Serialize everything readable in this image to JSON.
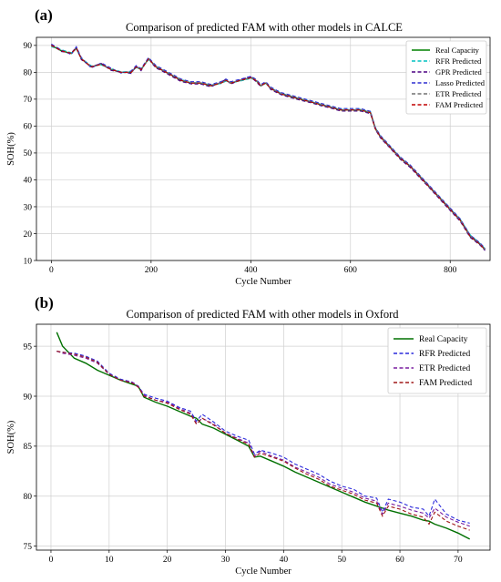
{
  "chart_data": [
    {
      "panel_label": "(a)",
      "type": "line",
      "title": "Comparison of predicted FAM  with other models in CALCE",
      "xlabel": "Cycle Number",
      "ylabel": "SOH(%)",
      "xlim": [
        -30,
        880
      ],
      "ylim": [
        10,
        93
      ],
      "xticks": [
        0,
        200,
        400,
        600,
        800
      ],
      "yticks": [
        10,
        20,
        30,
        40,
        50,
        60,
        70,
        80,
        90
      ],
      "grid": true,
      "legend_position": "top-right",
      "x": [
        0,
        20,
        40,
        50,
        60,
        80,
        100,
        120,
        140,
        160,
        170,
        180,
        195,
        200,
        210,
        220,
        240,
        260,
        280,
        300,
        320,
        340,
        350,
        360,
        380,
        400,
        410,
        420,
        430,
        440,
        460,
        480,
        500,
        520,
        540,
        560,
        580,
        600,
        620,
        640,
        650,
        660,
        680,
        700,
        720,
        740,
        760,
        780,
        800,
        820,
        840,
        860,
        870
      ],
      "series": [
        {
          "name": "Real Capacity",
          "color": "#008000",
          "dash": "solid",
          "values": [
            90,
            88,
            87,
            89,
            85,
            82,
            83,
            81,
            80,
            80,
            82,
            81,
            85,
            84,
            82,
            81,
            79,
            77,
            76,
            76,
            75,
            76,
            77,
            76,
            77,
            78,
            77,
            75,
            76,
            74,
            72,
            71,
            70,
            69,
            68,
            67,
            66,
            66,
            66,
            65,
            59,
            56,
            52,
            48,
            45,
            41,
            37,
            33,
            29,
            25,
            19,
            16,
            14
          ]
        },
        {
          "name": "RFR Predicted",
          "color": "#00c0c0",
          "dash": "dashed",
          "values": [
            89.5,
            88.4,
            87.3,
            88.6,
            85.2,
            82.4,
            82.7,
            81.3,
            80.2,
            80.3,
            81.7,
            81.2,
            84.6,
            84.1,
            82.3,
            81.2,
            79.2,
            77.3,
            76.2,
            76.1,
            75.3,
            75.8,
            76.7,
            76.2,
            76.8,
            77.7,
            77.1,
            75.3,
            75.8,
            74.2,
            72.3,
            71.2,
            70.2,
            69.2,
            68.2,
            67.2,
            66.2,
            66.1,
            66.2,
            65.3,
            59.4,
            56.3,
            52.3,
            48.3,
            45.2,
            41.3,
            37.3,
            33.3,
            29.3,
            25.4,
            19.6,
            16.3,
            14.4
          ]
        },
        {
          "name": "GPR Predicted",
          "color": "#4b0082",
          "dash": "dashed",
          "values": [
            90.3,
            87.7,
            87.2,
            89.3,
            84.7,
            82.1,
            83.3,
            80.7,
            80.1,
            79.6,
            82.3,
            80.6,
            85.4,
            83.7,
            81.6,
            80.7,
            78.6,
            76.6,
            75.7,
            75.6,
            74.6,
            76.3,
            77.4,
            75.6,
            77.3,
            78.3,
            76.6,
            74.7,
            76.3,
            73.6,
            71.7,
            70.6,
            69.6,
            68.7,
            67.6,
            66.7,
            65.6,
            65.6,
            65.6,
            64.6,
            58.7,
            55.6,
            51.7,
            47.6,
            44.6,
            40.6,
            36.7,
            32.6,
            28.6,
            24.6,
            18.6,
            15.7,
            13.7
          ]
        },
        {
          "name": "Lasso Predicted",
          "color": "#2f2fd0",
          "dash": "dashed",
          "values": [
            90.5,
            88.3,
            86.6,
            89.5,
            85.5,
            81.6,
            83.5,
            81.5,
            79.7,
            80.5,
            82.5,
            81.4,
            85.5,
            84.4,
            82.5,
            81.5,
            79.5,
            77.5,
            76.5,
            76.5,
            75.5,
            76.5,
            77.5,
            76.5,
            77.5,
            78.5,
            77.5,
            75.5,
            76.5,
            74.5,
            72.5,
            71.5,
            70.5,
            69.5,
            68.5,
            67.5,
            66.5,
            66.5,
            66.5,
            65.5,
            59.5,
            56.5,
            52.5,
            48.5,
            45.5,
            41.5,
            37.5,
            33.5,
            29.5,
            25.5,
            19.5,
            16.5,
            14.5
          ]
        },
        {
          "name": "ETR Predicted",
          "color": "#707070",
          "dash": "dashed",
          "values": [
            89.8,
            88.1,
            87.1,
            88.9,
            85.1,
            82.1,
            83.1,
            81.1,
            80.1,
            80.1,
            81.9,
            81.1,
            84.9,
            84.0,
            82.1,
            81.1,
            79.1,
            77.1,
            76.1,
            76.1,
            75.1,
            76.1,
            76.9,
            76.1,
            77.1,
            77.9,
            77.1,
            75.1,
            76.1,
            74.1,
            72.1,
            71.1,
            70.1,
            69.1,
            68.1,
            67.1,
            66.1,
            66.1,
            66.1,
            65.1,
            59.1,
            56.1,
            52.1,
            48.1,
            45.1,
            41.1,
            37.1,
            33.1,
            29.1,
            25.1,
            19.1,
            16.1,
            14.1
          ]
        },
        {
          "name": "FAM Predicted",
          "color": "#c00000",
          "dash": "dashed",
          "values": [
            90.1,
            88.0,
            87.0,
            89.0,
            85.0,
            82.0,
            83.0,
            81.0,
            80.0,
            80.0,
            82.0,
            81.0,
            85.0,
            84.0,
            82.0,
            81.0,
            79.0,
            77.0,
            76.0,
            76.0,
            75.0,
            76.0,
            77.0,
            76.0,
            77.0,
            78.0,
            77.0,
            75.0,
            76.0,
            74.0,
            72.0,
            71.0,
            70.0,
            69.0,
            68.0,
            67.0,
            66.0,
            66.0,
            66.0,
            65.0,
            59.0,
            56.0,
            52.0,
            48.0,
            45.0,
            41.0,
            37.0,
            33.0,
            29.0,
            25.0,
            19.0,
            16.0,
            14.0
          ]
        }
      ]
    },
    {
      "panel_label": "(b)",
      "type": "line",
      "title": "Comparison of predicted FAM  with other models in Oxford",
      "xlabel": "Cycle Number",
      "ylabel": "SOH(%)",
      "xlim": [
        -2.5,
        75.5
      ],
      "ylim": [
        74.6,
        97.2
      ],
      "xticks": [
        0,
        10,
        20,
        30,
        40,
        50,
        60,
        70
      ],
      "yticks": [
        75,
        80,
        85,
        90,
        95
      ],
      "grid": true,
      "legend_position": "top-right",
      "x": [
        1,
        2,
        4,
        6,
        8,
        10,
        12,
        14,
        15,
        16,
        18,
        20,
        22,
        24,
        25,
        26,
        28,
        30,
        32,
        34,
        35,
        36,
        38,
        40,
        42,
        44,
        46,
        48,
        50,
        52,
        54,
        56,
        57,
        58,
        60,
        62,
        64,
        65,
        66,
        68,
        70,
        72
      ],
      "series": [
        {
          "name": "Real Capacity",
          "color": "#007000",
          "dash": "solid",
          "values": [
            96.4,
            95.0,
            93.8,
            93.3,
            92.6,
            92.1,
            91.6,
            91.2,
            91.0,
            89.9,
            89.4,
            89.0,
            88.5,
            88.0,
            87.8,
            87.2,
            86.8,
            86.2,
            85.6,
            85.0,
            83.9,
            84.0,
            83.5,
            83.0,
            82.4,
            81.9,
            81.4,
            80.9,
            80.4,
            79.9,
            79.4,
            79.0,
            78.8,
            78.6,
            78.3,
            78.0,
            77.6,
            77.5,
            77.2,
            76.8,
            76.3,
            75.7
          ]
        },
        {
          "name": "RFR Predicted",
          "color": "#2a2adc",
          "dash": "dashed",
          "values": [
            94.5,
            94.4,
            94.3,
            94.0,
            93.5,
            92.3,
            91.7,
            91.4,
            91.0,
            90.2,
            89.8,
            89.5,
            88.9,
            88.5,
            87.5,
            88.2,
            87.4,
            86.5,
            86.0,
            85.6,
            84.2,
            84.6,
            84.3,
            83.9,
            83.2,
            82.7,
            82.2,
            81.5,
            81.0,
            80.7,
            80.0,
            79.8,
            78.4,
            79.7,
            79.4,
            78.9,
            78.7,
            78.0,
            79.7,
            78.2,
            77.6,
            77.3
          ]
        },
        {
          "name": "ETR Predicted",
          "color": "#7a1fa0",
          "dash": "dashed",
          "values": [
            94.5,
            94.3,
            94.1,
            93.8,
            93.3,
            92.2,
            91.6,
            91.4,
            91.0,
            90.1,
            89.6,
            89.4,
            88.8,
            88.3,
            87.3,
            87.8,
            87.2,
            86.3,
            85.8,
            85.3,
            84.0,
            84.5,
            84.0,
            83.6,
            82.9,
            82.4,
            81.9,
            81.2,
            80.8,
            80.4,
            79.8,
            79.5,
            78.2,
            79.3,
            79.0,
            78.6,
            78.3,
            77.8,
            78.8,
            77.9,
            77.4,
            77.0
          ]
        },
        {
          "name": "FAM Predicted",
          "color": "#a01818",
          "dash": "dashed",
          "values": [
            94.5,
            94.4,
            94.2,
            93.9,
            93.4,
            92.2,
            91.6,
            91.3,
            90.9,
            90.0,
            89.6,
            89.3,
            88.7,
            88.2,
            87.2,
            87.8,
            87.1,
            86.3,
            85.7,
            85.2,
            83.9,
            84.3,
            83.9,
            83.5,
            82.8,
            82.2,
            81.7,
            81.0,
            80.6,
            80.2,
            79.6,
            79.3,
            78.0,
            79.0,
            78.7,
            78.2,
            77.9,
            77.2,
            78.4,
            77.5,
            77.0,
            76.6
          ]
        }
      ]
    }
  ]
}
